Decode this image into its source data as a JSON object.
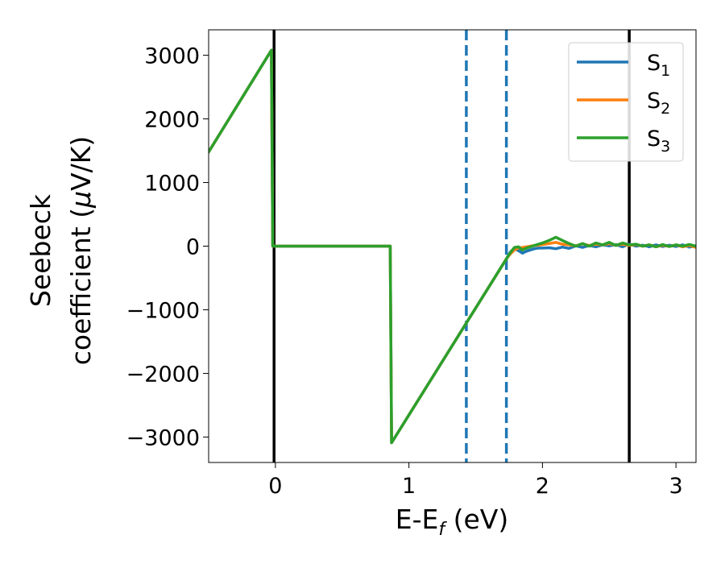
{
  "chart_data": {
    "type": "line",
    "xlabel": "E-E",
    "xlabel_sub": "f",
    "xlabel_unit": " (eV)",
    "ylabel_line1": "Seebeck",
    "ylabel_line2_pre": "coefficient  (",
    "ylabel_mu": "μ",
    "ylabel_line2_post": "V/K)",
    "xlim": [
      -0.5,
      3.15
    ],
    "ylim": [
      -3400,
      3400
    ],
    "xticks": [
      0,
      1,
      2,
      3
    ],
    "xtick_labels": [
      "0",
      "1",
      "2",
      "3"
    ],
    "yticks": [
      3000,
      2000,
      1000,
      0,
      -1000,
      -2000,
      -3000
    ],
    "ytick_labels": [
      "3000",
      "2000",
      "1000",
      "0",
      "−1000",
      "−2000",
      "−3000"
    ],
    "legend_position": "upper right",
    "grid": false,
    "vlines_solid": [
      -0.01,
      2.65
    ],
    "vlines_dashed": [
      1.43,
      1.73
    ],
    "vline_solid_color": "#000000",
    "vline_dashed_color": "#1f77b4",
    "series": [
      {
        "name": "S",
        "sub": "1",
        "color": "#1f77b4",
        "x": [
          -0.5,
          -0.03,
          -0.02,
          0.86,
          0.87,
          1.73,
          1.76,
          1.79,
          1.82,
          1.85,
          1.88,
          1.91,
          1.94,
          1.97,
          2.0,
          2.05,
          2.1,
          2.15,
          2.2,
          2.25,
          2.3,
          2.35,
          2.4,
          2.45,
          2.5,
          2.55,
          2.6,
          2.65,
          2.7,
          2.75,
          2.8,
          2.85,
          2.9,
          2.95,
          3.0,
          3.05,
          3.1,
          3.15
        ],
        "y": [
          1480,
          3080,
          0,
          0,
          -3090,
          -200,
          -90,
          -40,
          -70,
          -110,
          -80,
          -60,
          -40,
          -30,
          -30,
          -25,
          -40,
          -15,
          -35,
          5,
          -20,
          10,
          -10,
          20,
          5,
          25,
          -10,
          30,
          0,
          15,
          -10,
          20,
          -5,
          15,
          -5,
          20,
          -15,
          5
        ]
      },
      {
        "name": "S",
        "sub": "2",
        "color": "#ff7f0e",
        "x": [
          -0.5,
          -0.03,
          -0.02,
          0.86,
          0.87,
          1.73,
          1.76,
          1.79,
          1.82,
          1.85,
          1.88,
          1.91,
          1.94,
          1.97,
          2.0,
          2.05,
          2.1,
          2.15,
          2.2,
          2.25,
          2.3,
          2.35,
          2.4,
          2.45,
          2.5,
          2.55,
          2.6,
          2.65,
          2.7,
          2.75,
          2.8,
          2.85,
          2.9,
          2.95,
          3.0,
          3.05,
          3.1,
          3.15
        ],
        "y": [
          1480,
          3080,
          0,
          0,
          -3090,
          -200,
          -120,
          -60,
          -30,
          -20,
          -10,
          0,
          10,
          15,
          25,
          40,
          60,
          30,
          20,
          5,
          35,
          10,
          30,
          20,
          40,
          15,
          30,
          10,
          25,
          0,
          20,
          -10,
          15,
          -5,
          20,
          -10,
          10,
          -20
        ]
      },
      {
        "name": "S",
        "sub": "3",
        "color": "#2ca02c",
        "x": [
          -0.5,
          -0.03,
          -0.02,
          0.86,
          0.87,
          1.73,
          1.76,
          1.79,
          1.82,
          1.85,
          1.88,
          1.91,
          1.94,
          1.97,
          2.0,
          2.05,
          2.1,
          2.15,
          2.2,
          2.25,
          2.3,
          2.35,
          2.4,
          2.45,
          2.5,
          2.55,
          2.6,
          2.65,
          2.7,
          2.75,
          2.8,
          2.85,
          2.9,
          2.95,
          3.0,
          3.05,
          3.1,
          3.15
        ],
        "y": [
          1480,
          3080,
          0,
          0,
          -3090,
          -200,
          -100,
          -20,
          -10,
          -60,
          -30,
          -10,
          10,
          30,
          50,
          90,
          140,
          90,
          40,
          0,
          40,
          0,
          50,
          20,
          60,
          10,
          50,
          20,
          30,
          0,
          20,
          -10,
          25,
          -5,
          20,
          0,
          25,
          0
        ]
      }
    ]
  }
}
